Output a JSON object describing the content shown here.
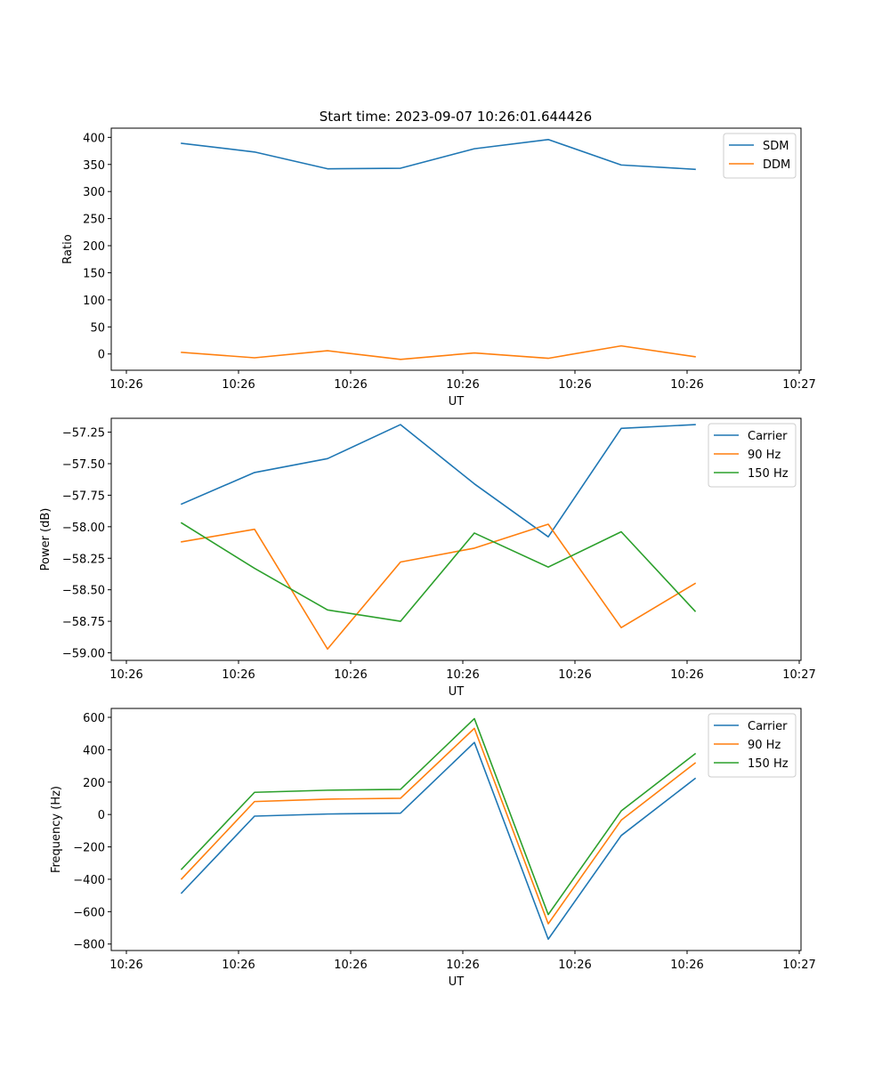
{
  "colors": {
    "blue": "#1f77b4",
    "orange": "#ff7f0e",
    "green": "#2ca02c"
  },
  "chart_data": [
    {
      "type": "line",
      "title": "Start time: 2023-09-07 10:26:01.644426",
      "xlabel": "UT",
      "ylabel": "Ratio",
      "x_ticks": [
        "10:26",
        "10:26",
        "10:26",
        "10:26",
        "10:26",
        "10:26",
        "10:26"
      ],
      "x_tick_last": "10:27",
      "ylim": [
        -30,
        417
      ],
      "y_ticks": [
        0,
        50,
        100,
        150,
        200,
        250,
        300,
        350,
        400
      ],
      "y_tick_labels": [
        "0",
        "50",
        "100",
        "150",
        "200",
        "250",
        "300",
        "350",
        "400"
      ],
      "legend": "top-right",
      "series": [
        {
          "name": "SDM",
          "color": "#1f77b4",
          "values": [
            389,
            373,
            342,
            343,
            379,
            396,
            349,
            341
          ]
        },
        {
          "name": "DDM",
          "color": "#ff7f0e",
          "values": [
            3,
            -7,
            6,
            -10,
            2,
            -8,
            15,
            -5
          ]
        }
      ]
    },
    {
      "type": "line",
      "title": "",
      "xlabel": "UT",
      "ylabel": "Power (dB)",
      "x_ticks": [
        "10:26",
        "10:26",
        "10:26",
        "10:26",
        "10:26",
        "10:26",
        "10:26"
      ],
      "x_tick_last": "10:27",
      "ylim": [
        -59.06,
        -57.14
      ],
      "y_ticks": [
        -59.0,
        -58.75,
        -58.5,
        -58.25,
        -58.0,
        -57.75,
        -57.5,
        -57.25
      ],
      "y_tick_labels": [
        "−59.00",
        "−58.75",
        "−58.50",
        "−58.25",
        "−58.00",
        "−57.75",
        "−57.50",
        "−57.25"
      ],
      "legend": "top-right",
      "series": [
        {
          "name": "Carrier",
          "color": "#1f77b4",
          "values": [
            -57.82,
            -57.57,
            -57.46,
            -57.19,
            -57.66,
            -58.08,
            -57.22,
            -57.19
          ]
        },
        {
          "name": "90 Hz",
          "color": "#ff7f0e",
          "values": [
            -58.12,
            -58.02,
            -58.97,
            -58.28,
            -58.17,
            -57.98,
            -58.8,
            -58.45
          ]
        },
        {
          "name": "150 Hz",
          "color": "#2ca02c",
          "values": [
            -57.97,
            -58.33,
            -58.66,
            -58.75,
            -58.05,
            -58.32,
            -58.04,
            -58.67
          ]
        }
      ]
    },
    {
      "type": "line",
      "title": "",
      "xlabel": "UT",
      "ylabel": "Frequency (Hz)",
      "x_ticks": [
        "10:26",
        "10:26",
        "10:26",
        "10:26",
        "10:26",
        "10:26",
        "10:26"
      ],
      "x_tick_last": "10:27",
      "ylim": [
        -840,
        655
      ],
      "y_ticks": [
        -800,
        -600,
        -400,
        -200,
        0,
        200,
        400,
        600
      ],
      "y_tick_labels": [
        "−800",
        "−600",
        "−400",
        "−200",
        "0",
        "200",
        "400",
        "600"
      ],
      "legend": "top-right",
      "series": [
        {
          "name": "Carrier",
          "color": "#1f77b4",
          "values": [
            -485,
            -10,
            3,
            8,
            445,
            -770,
            -130,
            222
          ]
        },
        {
          "name": "90 Hz",
          "color": "#ff7f0e",
          "values": [
            -398,
            80,
            95,
            100,
            532,
            -675,
            -35,
            318
          ]
        },
        {
          "name": "150 Hz",
          "color": "#2ca02c",
          "values": [
            -338,
            137,
            150,
            155,
            592,
            -618,
            22,
            375
          ]
        }
      ]
    }
  ]
}
